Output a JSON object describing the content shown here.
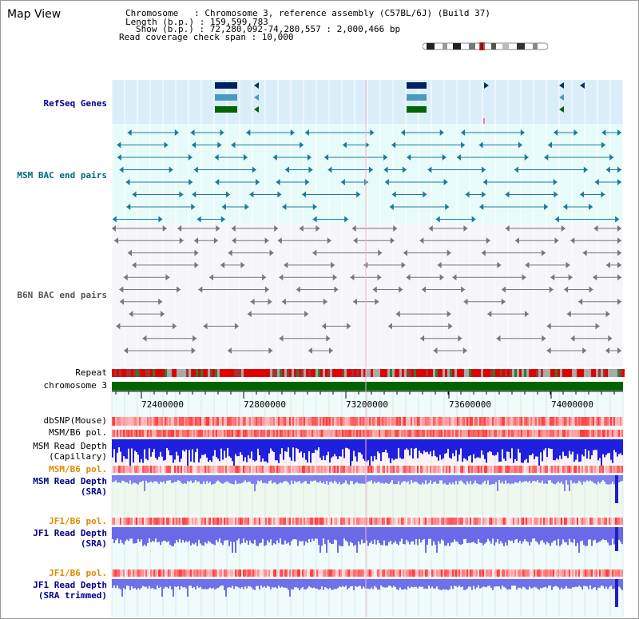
{
  "header": {
    "app_title": "Map View",
    "chromosome_label": "Chromosome   : Chromosome 3, reference assembly (C57BL/6J) (Build 37)",
    "length_label": "Length (b.p.) : 159,599,783",
    "show_label": "Show (b.p.) : 72,280,092-74,280,557 : 2,000,466 bp",
    "coverage_label": "Read coverage check span : 10,000"
  },
  "tracks": {
    "refseq": "RefSeq Genes",
    "msm_bac": "MSM BAC end pairs",
    "b6n_bac": "B6N BAC end pairs",
    "repeat": "Repeat",
    "chromosome": "chromosome 3",
    "dbsnp": "dbSNP(Mouse)",
    "msm_b6_pol": "MSM/B6 pol.",
    "msm_cap_1": "MSM Read Depth",
    "msm_cap_2": "(Capillary)",
    "msm_b6_pol_2": "MSM/B6 pol.",
    "msm_sra_1": "MSM Read Depth",
    "msm_sra_2": "(SRA)",
    "jf1_b6_pol": "JF1/B6 pol.",
    "jf1_sra_1": "JF1 Read Depth",
    "jf1_sra_2": "(SRA)",
    "jf1_b6_pol_2": "JF1/B6 pol.",
    "jf1_trim_1": "JF1 Read Depth",
    "jf1_trim_2": "(SRA trimmed)"
  },
  "axis": {
    "ticks": [
      "72400000",
      "72800000",
      "73200000",
      "73600000",
      "74000000"
    ]
  },
  "colors": {
    "refseq_bg": "#daeef9",
    "msm_bg": "#e8fbfb",
    "b6n_bg": "#f5f5fa",
    "chromosome": "#006400",
    "depth": "#3333ee"
  }
}
